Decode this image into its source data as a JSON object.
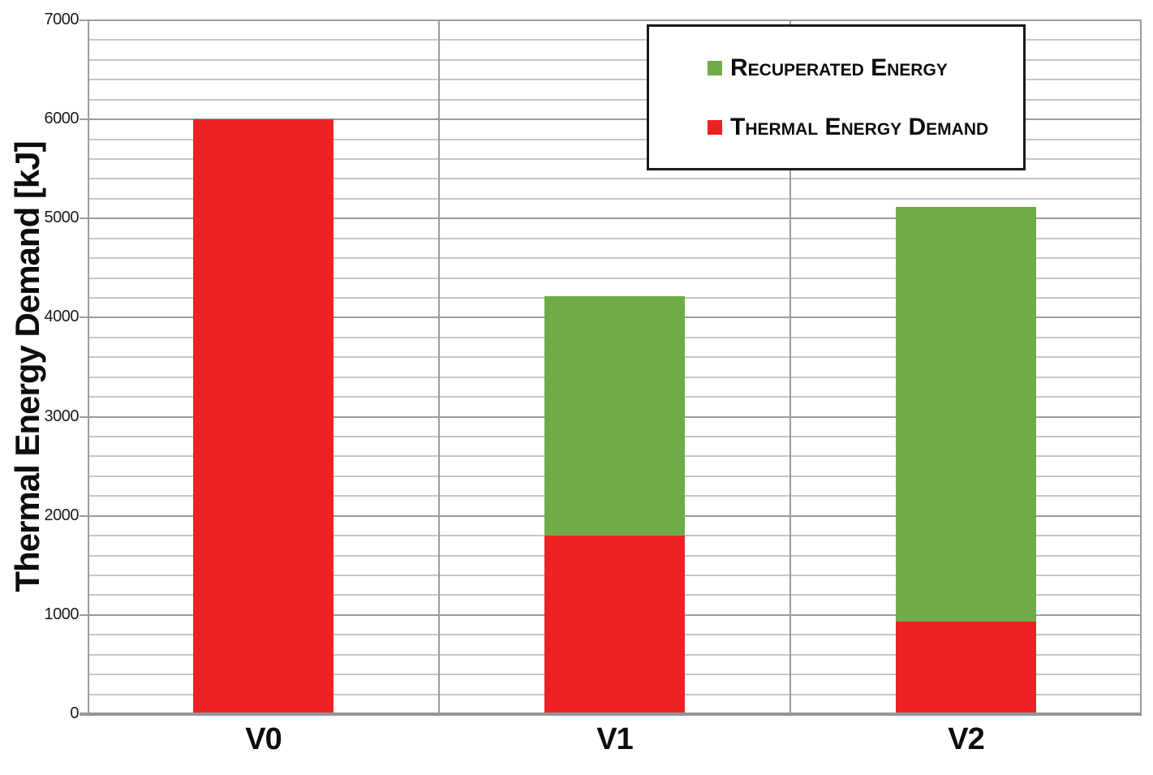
{
  "chart_data": {
    "type": "bar",
    "stacked": true,
    "title": "",
    "categories": [
      "V0",
      "V1",
      "V2"
    ],
    "series": [
      {
        "name": "Recuperated Energy",
        "color": "#6FAC47",
        "values": [
          0,
          2420,
          4190
        ]
      },
      {
        "name": "Thermal Energy Demand",
        "color": "#EE2124",
        "values": [
          6000,
          1800,
          930
        ]
      }
    ],
    "xlabel": "",
    "ylabel": "Thermal Energy Demand [kJ]",
    "ylim": [
      0,
      7000
    ],
    "ytick_major": 1000,
    "ytick_minor": 200,
    "ytick_labels": [
      "0",
      "1000",
      "2000",
      "3000",
      "4000",
      "5000",
      "6000",
      "7000"
    ],
    "grid": true,
    "legend_position": "top-right",
    "legend_entries": [
      {
        "label": "Recuperated Energy",
        "color": "#6FAC47"
      },
      {
        "label": "Thermal Energy Demand",
        "color": "#EE2124"
      }
    ]
  },
  "colors": {
    "recuperated_green": "#6FAC47",
    "thermal_red": "#EE2124",
    "gridline_minor": "#C6C6C6",
    "gridline_major": "#9C9C9C",
    "axis": "#949494",
    "text": "#0D0D0D",
    "background": "#FFFFFF",
    "legend_border": "#1A1A1A"
  }
}
